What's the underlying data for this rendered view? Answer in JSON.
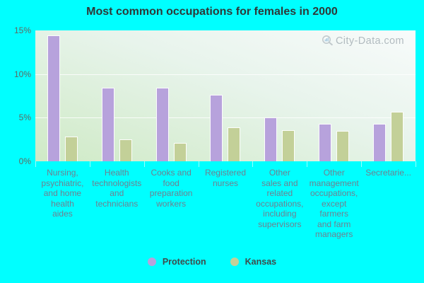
{
  "title": "Most common occupations for females in 2000",
  "watermark": {
    "text": "City-Data.com",
    "icon": "magnifier-barchart-icon"
  },
  "colors": {
    "background": "#00ffff",
    "bar_protection": "#b7a2dc",
    "bar_kansas": "#c3d098",
    "bar_border": "#ffffff",
    "plot_gradient_top": "#f8fbfb",
    "plot_gradient_bottom": "#cfeac6",
    "gridline": "#ffffff",
    "title_text": "#2e3838",
    "y_axis_text": "#5e6a62",
    "x_axis_text": "#6f8090",
    "legend_text": "#3f4b4b",
    "watermark_text": "#8e9aa2"
  },
  "y_axis": {
    "tick_labels": [
      "15%",
      "10%",
      "5%",
      "0%"
    ],
    "max_percent": 15
  },
  "x_axis": {
    "labels_wrapped": [
      [
        "Nursing,",
        "psychiatric,",
        "and home",
        "health",
        "aides"
      ],
      [
        "Health",
        "technologists",
        "and",
        "technicians"
      ],
      [
        "Cooks and",
        "food",
        "preparation",
        "workers"
      ],
      [
        "Registered",
        "nurses"
      ],
      [
        "Other",
        "sales and",
        "related",
        "occupations,",
        "including",
        "supervisors"
      ],
      [
        "Other",
        "management",
        "occupations,",
        "except",
        "farmers",
        "and farm",
        "managers"
      ],
      [
        "Secretarie..."
      ]
    ]
  },
  "legend": {
    "items": [
      {
        "label": "Protection",
        "color": "#b7a2dc"
      },
      {
        "label": "Kansas",
        "color": "#c3d098"
      }
    ]
  },
  "chart_data": {
    "type": "bar",
    "title": "Most common occupations for females in 2000",
    "categories": [
      "Nursing, psychiatric, and home health aides",
      "Health technologists and technicians",
      "Cooks and food preparation workers",
      "Registered nurses",
      "Other sales and related occupations, including supervisors",
      "Other management occupations, except farmers and farm managers",
      "Secretarie..."
    ],
    "series": [
      {
        "name": "Protection",
        "values": [
          14.4,
          8.4,
          8.4,
          7.6,
          5.0,
          4.3,
          4.3
        ]
      },
      {
        "name": "Kansas",
        "values": [
          2.8,
          2.5,
          2.1,
          3.9,
          3.6,
          3.5,
          5.7
        ]
      }
    ],
    "xlabel": "",
    "ylabel": "",
    "ylim": [
      0,
      15
    ],
    "value_format": "percent",
    "grid": true,
    "legend_position": "bottom"
  }
}
